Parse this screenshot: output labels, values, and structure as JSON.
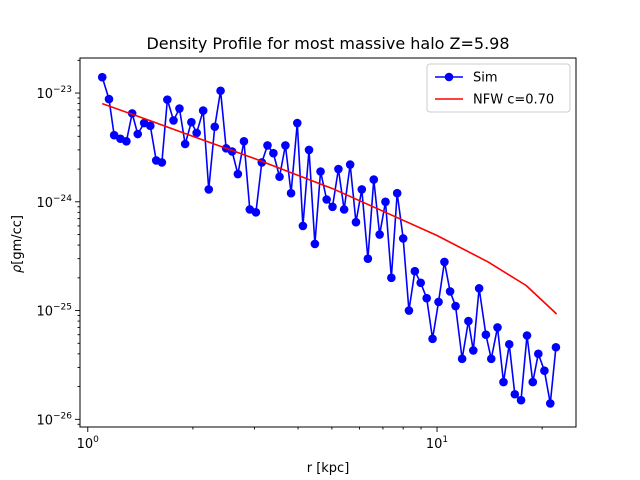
{
  "chart_data": {
    "type": "line",
    "title": "Density Profile for most massive halo Z=5.98",
    "xlabel": "r [kpc]",
    "ylabel_prefix": "ρ",
    "ylabel_unit": "[gm/cc]",
    "xscale": "log",
    "yscale": "log",
    "xlim": [
      0.95,
      25
    ],
    "ylim": [
      8.5e-27,
      2.1e-23
    ],
    "x_ticks": [
      {
        "value": 1,
        "base": "10",
        "exp": "0"
      },
      {
        "value": 10,
        "base": "10",
        "exp": "1"
      }
    ],
    "y_ticks": [
      {
        "value": 1e-26,
        "base": "10",
        "exp": "−26"
      },
      {
        "value": 1e-25,
        "base": "10",
        "exp": "−25"
      },
      {
        "value": 1e-24,
        "base": "10",
        "exp": "−24"
      },
      {
        "value": 1e-23,
        "base": "10",
        "exp": "−23"
      }
    ],
    "grid": false,
    "legend_position": "top-right",
    "series": [
      {
        "name": "Sim",
        "color": "#0000ff",
        "marker": "circle",
        "x": [
          1.1,
          1.15,
          1.19,
          1.24,
          1.29,
          1.34,
          1.39,
          1.45,
          1.51,
          1.57,
          1.63,
          1.69,
          1.76,
          1.83,
          1.9,
          1.98,
          2.05,
          2.14,
          2.22,
          2.31,
          2.4,
          2.49,
          2.59,
          2.69,
          2.8,
          2.91,
          3.03,
          3.15,
          3.27,
          3.4,
          3.54,
          3.68,
          3.82,
          3.98,
          4.13,
          4.3,
          4.47,
          4.64,
          4.83,
          5.02,
          5.22,
          5.42,
          5.64,
          5.86,
          6.09,
          6.34,
          6.59,
          6.85,
          7.12,
          7.4,
          7.69,
          8.0,
          8.31,
          8.64,
          8.98,
          9.34,
          9.71,
          10.1,
          10.5,
          10.9,
          11.3,
          11.8,
          12.3,
          12.7,
          13.2,
          13.8,
          14.3,
          14.9,
          15.5,
          16.1,
          16.7,
          17.4,
          18.1,
          18.8,
          19.5,
          20.3,
          21.1,
          21.9
        ],
        "y": [
          1.4e-23,
          8.8e-24,
          4.1e-24,
          3.8e-24,
          3.6e-24,
          6.5e-24,
          4.2e-24,
          5.3e-24,
          5e-24,
          2.4e-24,
          2.3e-24,
          8.7e-24,
          5.6e-24,
          7.2e-24,
          3.4e-24,
          5.4e-24,
          4.3e-24,
          6.9e-24,
          1.3e-24,
          4.9e-24,
          1.05e-23,
          3.1e-24,
          2.9e-24,
          1.8e-24,
          3.6e-24,
          8.5e-25,
          8e-25,
          2.3e-24,
          3.3e-24,
          2.8e-24,
          1.7e-24,
          3.3e-24,
          1.2e-24,
          5.3e-24,
          6e-25,
          3e-24,
          4.1e-25,
          1.9e-24,
          1.05e-24,
          9e-25,
          2e-24,
          8.5e-25,
          2.2e-24,
          6.5e-25,
          1.3e-24,
          3e-25,
          1.6e-24,
          5e-25,
          1e-24,
          2e-25,
          1.2e-24,
          4.6e-25,
          1e-25,
          2.3e-25,
          1.8e-25,
          1.3e-25,
          5.5e-26,
          1.2e-25,
          2.8e-25,
          1.5e-25,
          1.1e-25,
          3.6e-26,
          8e-26,
          4.3e-26,
          1.6e-25,
          6e-26,
          3.6e-26,
          7e-26,
          2.2e-26,
          4.9e-26,
          1.7e-26,
          1.5e-26,
          5.9e-26,
          2.2e-26,
          4e-26,
          2.8e-26,
          1.4e-26,
          4.6e-26
        ]
      },
      {
        "name": "NFW c=0.70",
        "color": "#ff0000",
        "marker": "none",
        "x": [
          1.1,
          1.5,
          2.0,
          3.0,
          4.0,
          5.0,
          7.0,
          10.0,
          14.0,
          18.0,
          22.0
        ],
        "y": [
          8e-24,
          5.6e-24,
          4e-24,
          2.5e-24,
          1.75e-24,
          1.33e-24,
          8.2e-25,
          4.9e-25,
          2.8e-25,
          1.7e-25,
          9.3e-26
        ]
      }
    ]
  }
}
